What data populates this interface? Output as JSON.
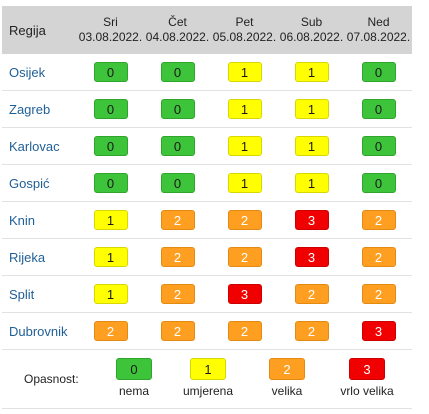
{
  "header": {
    "region_label": "Regija",
    "days": [
      {
        "name": "Sri",
        "date": "03.08.2022."
      },
      {
        "name": "Čet",
        "date": "04.08.2022."
      },
      {
        "name": "Pet",
        "date": "05.08.2022."
      },
      {
        "name": "Sub",
        "date": "06.08.2022."
      },
      {
        "name": "Ned",
        "date": "07.08.2022."
      }
    ]
  },
  "rows": [
    {
      "region": "Osijek",
      "levels": [
        "0",
        "0",
        "1",
        "1",
        "0"
      ]
    },
    {
      "region": "Zagreb",
      "levels": [
        "0",
        "0",
        "1",
        "1",
        "0"
      ]
    },
    {
      "region": "Karlovac",
      "levels": [
        "0",
        "0",
        "1",
        "1",
        "0"
      ]
    },
    {
      "region": "Gospić",
      "levels": [
        "0",
        "0",
        "1",
        "1",
        "0"
      ]
    },
    {
      "region": "Knin",
      "levels": [
        "1",
        "2",
        "2",
        "3",
        "2"
      ]
    },
    {
      "region": "Rijeka",
      "levels": [
        "1",
        "2",
        "2",
        "3",
        "2"
      ]
    },
    {
      "region": "Split",
      "levels": [
        "1",
        "2",
        "3",
        "2",
        "2"
      ]
    },
    {
      "region": "Dubrovnik",
      "levels": [
        "2",
        "2",
        "2",
        "2",
        "3"
      ]
    }
  ],
  "legend": {
    "label": "Opasnost:",
    "items": [
      {
        "value": "0",
        "text": "nema"
      },
      {
        "value": "1",
        "text": "umjerena"
      },
      {
        "value": "2",
        "text": "velika"
      },
      {
        "value": "3",
        "text": "vrlo velika"
      }
    ]
  },
  "colors": {
    "level_0": "#3ec43a",
    "level_1": "#ffff00",
    "level_2": "#ff9f21",
    "level_3": "#f00000",
    "header_bg": "#d4d4d4",
    "region_text": "#1f5f97"
  }
}
